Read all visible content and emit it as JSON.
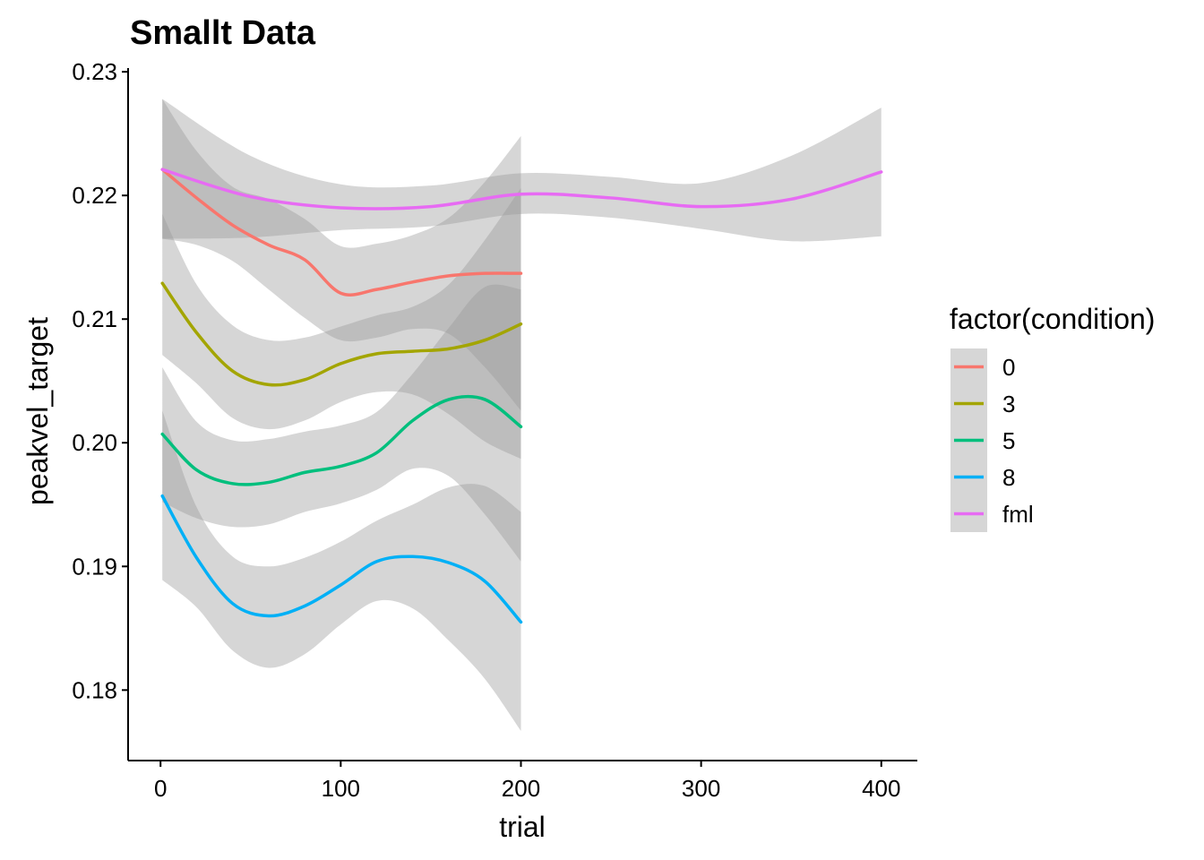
{
  "chart_data": {
    "type": "line",
    "title": "Smallt Data",
    "xlabel": "trial",
    "ylabel": "peakvel_target",
    "xlim": [
      -18,
      420
    ],
    "ylim": [
      0.1743,
      0.2303
    ],
    "x_ticks": [
      0,
      100,
      200,
      300,
      400
    ],
    "x_tick_labels": [
      "0",
      "100",
      "200",
      "300",
      "400"
    ],
    "y_ticks": [
      0.18,
      0.19,
      0.2,
      0.21,
      0.22,
      0.23
    ],
    "y_tick_labels": [
      "0.18",
      "0.19",
      "0.20",
      "0.21",
      "0.22",
      "0.23"
    ],
    "grid": false,
    "legend": {
      "title": "factor(condition)",
      "position": "right"
    },
    "band_color": "#999999",
    "series": [
      {
        "name": "0",
        "color": "#F8766D",
        "x": [
          1,
          20,
          40,
          60,
          80,
          100,
          120,
          140,
          160,
          180,
          200
        ],
        "y": [
          0.2221,
          0.2198,
          0.2176,
          0.216,
          0.2148,
          0.2121,
          0.2124,
          0.213,
          0.2135,
          0.2137,
          0.2137
        ],
        "lower": [
          0.2165,
          0.216,
          0.2147,
          0.2124,
          0.2101,
          0.2083,
          0.2085,
          0.2092,
          0.2088,
          0.2061,
          0.2026
        ],
        "upper": [
          0.2278,
          0.2236,
          0.2207,
          0.2197,
          0.2181,
          0.2159,
          0.2161,
          0.2168,
          0.2182,
          0.2211,
          0.2248
        ]
      },
      {
        "name": "3",
        "color": "#A3A500",
        "x": [
          1,
          20,
          40,
          60,
          80,
          100,
          120,
          140,
          160,
          180,
          200
        ],
        "y": [
          0.2129,
          0.2089,
          0.2058,
          0.2047,
          0.2051,
          0.2064,
          0.2072,
          0.2074,
          0.2076,
          0.2083,
          0.2096
        ],
        "lower": [
          0.2071,
          0.2048,
          0.202,
          0.2011,
          0.2018,
          0.2033,
          0.2041,
          0.2039,
          0.2023,
          0.2001,
          0.1987
        ],
        "upper": [
          0.2185,
          0.2128,
          0.2095,
          0.2083,
          0.2085,
          0.2094,
          0.2103,
          0.211,
          0.2128,
          0.2164,
          0.2206
        ]
      },
      {
        "name": "5",
        "color": "#00BF7D",
        "x": [
          1,
          20,
          40,
          60,
          80,
          100,
          120,
          140,
          160,
          180,
          200
        ],
        "y": [
          0.2007,
          0.1978,
          0.1967,
          0.1968,
          0.1976,
          0.1981,
          0.1992,
          0.2018,
          0.2035,
          0.2035,
          0.2013
        ],
        "lower": [
          0.1952,
          0.1939,
          0.1932,
          0.1934,
          0.1944,
          0.1951,
          0.1962,
          0.1979,
          0.1973,
          0.1942,
          0.1904
        ],
        "upper": [
          0.2061,
          0.2017,
          0.2002,
          0.2003,
          0.2009,
          0.2014,
          0.2025,
          0.2056,
          0.2093,
          0.2126,
          0.2124
        ]
      },
      {
        "name": "8",
        "color": "#00B0F6",
        "x": [
          1,
          20,
          40,
          60,
          80,
          100,
          120,
          140,
          160,
          180,
          200
        ],
        "y": [
          0.1957,
          0.1907,
          0.187,
          0.186,
          0.1868,
          0.1885,
          0.1904,
          0.1908,
          0.1903,
          0.1888,
          0.1855
        ],
        "lower": [
          0.1889,
          0.1867,
          0.1832,
          0.1818,
          0.1829,
          0.1853,
          0.1872,
          0.1866,
          0.184,
          0.1809,
          0.1767
        ],
        "upper": [
          0.2026,
          0.1948,
          0.1908,
          0.19,
          0.1907,
          0.192,
          0.1937,
          0.195,
          0.1964,
          0.1965,
          0.1944
        ]
      },
      {
        "name": "fml",
        "color": "#E76BF3",
        "x": [
          1,
          50,
          100,
          150,
          200,
          250,
          300,
          350,
          400
        ],
        "y": [
          0.2221,
          0.2199,
          0.219,
          0.2191,
          0.2201,
          0.2198,
          0.2191,
          0.2197,
          0.2219
        ],
        "lower": [
          0.2165,
          0.2166,
          0.2172,
          0.2175,
          0.2185,
          0.2182,
          0.2173,
          0.2163,
          0.2167
        ],
        "upper": [
          0.2278,
          0.2232,
          0.2209,
          0.2208,
          0.2218,
          0.2215,
          0.221,
          0.2232,
          0.2271
        ]
      }
    ]
  }
}
